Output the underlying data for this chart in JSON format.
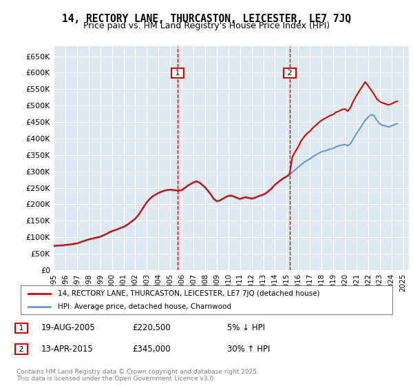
{
  "title": "14, RECTORY LANE, THURCASTON, LEICESTER, LE7 7JQ",
  "subtitle": "Price paid vs. HM Land Registry's House Price Index (HPI)",
  "bg_color": "#dde8f0",
  "plot_bg_color": "#dde8f0",
  "ylim": [
    0,
    680000
  ],
  "yticks": [
    0,
    50000,
    100000,
    150000,
    200000,
    250000,
    300000,
    350000,
    400000,
    450000,
    500000,
    550000,
    600000,
    650000
  ],
  "ytick_labels": [
    "£0",
    "£50K",
    "£100K",
    "£150K",
    "£200K",
    "£250K",
    "£300K",
    "£350K",
    "£400K",
    "£450K",
    "£500K",
    "£550K",
    "£600K",
    "£650K"
  ],
  "xlim_start": 1995.0,
  "xlim_end": 2025.5,
  "sale1_x": 2005.63,
  "sale1_y": 220500,
  "sale2_x": 2015.28,
  "sale2_y": 345000,
  "legend_line1": "14, RECTORY LANE, THURCASTON, LEICESTER, LE7 7JQ (detached house)",
  "legend_line2": "HPI: Average price, detached house, Charnwood",
  "annotation1_date": "19-AUG-2005",
  "annotation1_price": "£220,500",
  "annotation1_hpi": "5% ↓ HPI",
  "annotation2_date": "13-APR-2015",
  "annotation2_price": "£345,000",
  "annotation2_hpi": "30% ↑ HPI",
  "footer": "Contains HM Land Registry data © Crown copyright and database right 2025.\nThis data is licensed under the Open Government Licence v3.0.",
  "line_color_property": "#cc0000",
  "line_color_hpi": "#6699cc",
  "hpi_data": {
    "years": [
      1995.0,
      1995.25,
      1995.5,
      1995.75,
      1996.0,
      1996.25,
      1996.5,
      1996.75,
      1997.0,
      1997.25,
      1997.5,
      1997.75,
      1998.0,
      1998.25,
      1998.5,
      1998.75,
      1999.0,
      1999.25,
      1999.5,
      1999.75,
      2000.0,
      2000.25,
      2000.5,
      2000.75,
      2001.0,
      2001.25,
      2001.5,
      2001.75,
      2002.0,
      2002.25,
      2002.5,
      2002.75,
      2003.0,
      2003.25,
      2003.5,
      2003.75,
      2004.0,
      2004.25,
      2004.5,
      2004.75,
      2005.0,
      2005.25,
      2005.5,
      2005.75,
      2006.0,
      2006.25,
      2006.5,
      2006.75,
      2007.0,
      2007.25,
      2007.5,
      2007.75,
      2008.0,
      2008.25,
      2008.5,
      2008.75,
      2009.0,
      2009.25,
      2009.5,
      2009.75,
      2010.0,
      2010.25,
      2010.5,
      2010.75,
      2011.0,
      2011.25,
      2011.5,
      2011.75,
      2012.0,
      2012.25,
      2012.5,
      2012.75,
      2013.0,
      2013.25,
      2013.5,
      2013.75,
      2014.0,
      2014.25,
      2014.5,
      2014.75,
      2015.0,
      2015.25,
      2015.5,
      2015.75,
      2016.0,
      2016.25,
      2016.5,
      2016.75,
      2017.0,
      2017.25,
      2017.5,
      2017.75,
      2018.0,
      2018.25,
      2018.5,
      2018.75,
      2019.0,
      2019.25,
      2019.5,
      2019.75,
      2020.0,
      2020.25,
      2020.5,
      2020.75,
      2021.0,
      2021.25,
      2021.5,
      2021.75,
      2022.0,
      2022.25,
      2022.5,
      2022.75,
      2023.0,
      2023.25,
      2023.5,
      2023.75,
      2024.0,
      2024.25,
      2024.5
    ],
    "values": [
      72000,
      73000,
      73500,
      74000,
      75000,
      76000,
      77000,
      78500,
      80000,
      83000,
      86000,
      89000,
      92000,
      94000,
      96000,
      98000,
      100000,
      104000,
      108000,
      113000,
      117000,
      120000,
      123000,
      127000,
      130000,
      135000,
      141000,
      148000,
      155000,
      165000,
      178000,
      192000,
      205000,
      215000,
      223000,
      228000,
      233000,
      237000,
      240000,
      242000,
      243000,
      242000,
      241000,
      240000,
      242000,
      248000,
      255000,
      260000,
      265000,
      268000,
      265000,
      258000,
      250000,
      240000,
      228000,
      215000,
      208000,
      210000,
      215000,
      220000,
      224000,
      225000,
      222000,
      218000,
      215000,
      218000,
      220000,
      218000,
      216000,
      218000,
      222000,
      225000,
      228000,
      233000,
      240000,
      248000,
      258000,
      265000,
      272000,
      278000,
      283000,
      290000,
      298000,
      305000,
      313000,
      320000,
      328000,
      333000,
      338000,
      345000,
      350000,
      355000,
      360000,
      362000,
      365000,
      368000,
      370000,
      375000,
      378000,
      380000,
      382000,
      378000,
      385000,
      400000,
      415000,
      428000,
      442000,
      455000,
      465000,
      472000,
      470000,
      455000,
      445000,
      440000,
      438000,
      435000,
      438000,
      442000,
      445000
    ]
  },
  "property_data": {
    "years": [
      1995.0,
      1995.25,
      1995.5,
      1995.75,
      1996.0,
      1996.25,
      1996.5,
      1996.75,
      1997.0,
      1997.25,
      1997.5,
      1997.75,
      1998.0,
      1998.25,
      1998.5,
      1998.75,
      1999.0,
      1999.25,
      1999.5,
      1999.75,
      2000.0,
      2000.25,
      2000.5,
      2000.75,
      2001.0,
      2001.25,
      2001.5,
      2001.75,
      2002.0,
      2002.25,
      2002.5,
      2002.75,
      2003.0,
      2003.25,
      2003.5,
      2003.75,
      2004.0,
      2004.25,
      2004.5,
      2004.75,
      2005.0,
      2005.25,
      2005.5,
      2005.75,
      2006.0,
      2006.25,
      2006.5,
      2006.75,
      2007.0,
      2007.25,
      2007.5,
      2007.75,
      2008.0,
      2008.25,
      2008.5,
      2008.75,
      2009.0,
      2009.25,
      2009.5,
      2009.75,
      2010.0,
      2010.25,
      2010.5,
      2010.75,
      2011.0,
      2011.25,
      2011.5,
      2011.75,
      2012.0,
      2012.25,
      2012.5,
      2012.75,
      2013.0,
      2013.25,
      2013.5,
      2013.75,
      2014.0,
      2014.25,
      2014.5,
      2014.75,
      2015.0,
      2015.25,
      2015.5,
      2015.75,
      2016.0,
      2016.25,
      2016.5,
      2016.75,
      2017.0,
      2017.25,
      2017.5,
      2017.75,
      2018.0,
      2018.25,
      2018.5,
      2018.75,
      2019.0,
      2019.25,
      2019.5,
      2019.75,
      2020.0,
      2020.25,
      2020.5,
      2020.75,
      2021.0,
      2021.25,
      2021.5,
      2021.75,
      2022.0,
      2022.25,
      2022.5,
      2022.75,
      2023.0,
      2023.25,
      2023.5,
      2023.75,
      2024.0,
      2024.25,
      2024.5
    ],
    "values": [
      74000,
      75000,
      75500,
      76000,
      77000,
      78000,
      79000,
      80500,
      82000,
      85000,
      88000,
      91000,
      94000,
      96000,
      98000,
      100000,
      102000,
      106000,
      110000,
      115000,
      119000,
      122000,
      125000,
      129000,
      132000,
      137000,
      143000,
      150000,
      157000,
      167000,
      180000,
      194000,
      207000,
      217000,
      225000,
      230000,
      235000,
      239000,
      242000,
      244000,
      245000,
      244000,
      243000,
      242000,
      244000,
      250000,
      257000,
      262000,
      267000,
      270000,
      267000,
      260000,
      252000,
      242000,
      230000,
      217000,
      210000,
      212000,
      217000,
      222000,
      226000,
      227000,
      224000,
      220000,
      217000,
      220000,
      222000,
      220000,
      218000,
      220000,
      224000,
      227000,
      230000,
      235000,
      242000,
      250000,
      260000,
      267000,
      274000,
      280000,
      285000,
      292000,
      345000,
      360000,
      375000,
      393000,
      405000,
      415000,
      422000,
      432000,
      440000,
      448000,
      455000,
      460000,
      465000,
      470000,
      473000,
      480000,
      483000,
      488000,
      490000,
      483000,
      495000,
      515000,
      530000,
      545000,
      558000,
      572000,
      560000,
      548000,
      535000,
      520000,
      512000,
      508000,
      505000,
      502000,
      505000,
      510000,
      513000
    ]
  }
}
